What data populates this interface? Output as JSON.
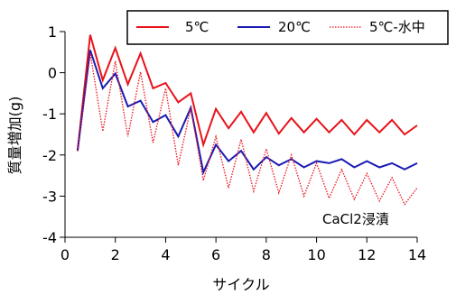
{
  "chart_data": {
    "type": "line",
    "title": "",
    "xlabel": "サイクル",
    "ylabel": "質量増加(g)",
    "xlim": [
      0,
      14
    ],
    "ylim": [
      -4,
      1
    ],
    "xticks": [
      0,
      2,
      4,
      6,
      8,
      10,
      12,
      14
    ],
    "yticks": [
      -4,
      -3,
      -2,
      -1,
      0,
      1
    ],
    "grid": false,
    "legend_position": "top-right",
    "annotation": "CaCl2浸漬",
    "series": [
      {
        "name": "5℃",
        "color": "#e8131b",
        "style": "solid",
        "x": [
          0.5,
          1,
          1.5,
          2,
          2.5,
          3,
          3.5,
          4,
          4.5,
          5,
          5.5,
          6,
          6.5,
          7,
          7.5,
          8,
          8.5,
          9,
          9.5,
          10,
          10.5,
          11,
          11.5,
          12,
          12.5,
          13,
          13.5,
          14
        ],
        "y": [
          -1.9,
          0.92,
          -0.18,
          0.6,
          -0.28,
          0.47,
          -0.38,
          -0.25,
          -0.72,
          -0.5,
          -1.75,
          -0.88,
          -1.35,
          -0.95,
          -1.45,
          -0.98,
          -1.48,
          -1.1,
          -1.45,
          -1.12,
          -1.45,
          -1.15,
          -1.5,
          -1.15,
          -1.45,
          -1.15,
          -1.5,
          -1.28
        ]
      },
      {
        "name": "20℃",
        "color": "#1a1ab4",
        "style": "solid",
        "x": [
          0.5,
          1,
          1.5,
          2,
          2.5,
          3,
          3.5,
          4,
          4.5,
          5,
          5.5,
          6,
          6.5,
          7,
          7.5,
          8,
          8.5,
          9,
          9.5,
          10,
          10.5,
          11,
          11.5,
          12,
          12.5,
          13,
          13.5,
          14
        ],
        "y": [
          -1.9,
          0.55,
          -0.38,
          -0.02,
          -0.82,
          -0.68,
          -1.2,
          -1.03,
          -1.55,
          -0.85,
          -2.42,
          -1.75,
          -2.15,
          -1.9,
          -2.35,
          -2.05,
          -2.25,
          -2.1,
          -2.3,
          -2.15,
          -2.2,
          -2.1,
          -2.3,
          -2.15,
          -2.3,
          -2.2,
          -2.35,
          -2.2
        ]
      },
      {
        "name": "5℃-水中",
        "color": "#e8131b",
        "style": "dotted",
        "x": [
          0.5,
          1,
          1.5,
          2,
          2.5,
          3,
          3.5,
          4,
          4.5,
          5,
          5.5,
          6,
          6.5,
          7,
          7.5,
          8,
          8.5,
          9,
          9.5,
          10,
          10.5,
          11,
          11.5,
          12,
          12.5,
          13,
          13.5,
          14
        ],
        "y": [
          -1.9,
          0.48,
          -1.42,
          0.28,
          -1.55,
          0.02,
          -1.7,
          -0.38,
          -2.25,
          -0.85,
          -2.62,
          -1.55,
          -2.8,
          -1.62,
          -2.88,
          -1.85,
          -2.92,
          -2.0,
          -3.0,
          -2.2,
          -3.05,
          -2.35,
          -3.08,
          -2.45,
          -3.12,
          -2.55,
          -3.2,
          -2.8
        ]
      }
    ]
  }
}
